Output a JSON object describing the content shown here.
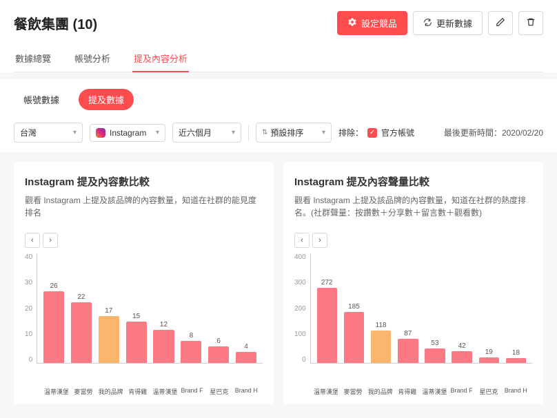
{
  "header": {
    "title": "餐飲集團 (10)",
    "set_competitor_label": "設定競品",
    "refresh_label": "更新數據"
  },
  "tabs": {
    "items": [
      "數據總覽",
      "帳號分析",
      "提及內容分析"
    ],
    "active_index": 2
  },
  "subtabs": {
    "items": [
      "帳號數據",
      "提及數據"
    ],
    "active_index": 1
  },
  "filters": {
    "region": "台灣",
    "platform": "Instagram",
    "period": "近六個月",
    "sort": "預設排序",
    "exclude_label": "排除：",
    "exclude_official": "官方帳號"
  },
  "updated": {
    "label": "最後更新時間：",
    "value": "2020/02/20"
  },
  "colors": {
    "normal": "#fd7a85",
    "highlight": "#f9b66c",
    "axis": "#999999"
  },
  "chart1": {
    "title": "Instagram 提及內容數比較",
    "sub": "觀看 Instagram 上提及該品牌的內容數量，知道在社群的能見度排名",
    "ymax": 40,
    "ytick_step": 10,
    "categories": [
      "溫蒂漢堡",
      "麥當勞",
      "我的品牌",
      "肯得雞",
      "溫蒂漢堡",
      "Brand F",
      "星巴克",
      "Brand H"
    ],
    "values": [
      26,
      22,
      17,
      15,
      12,
      8,
      6,
      4
    ],
    "highlight_index": 2
  },
  "chart2": {
    "title": "Instagram 提及內容聲量比較",
    "sub": "觀看 Instagram 上提及該品牌的內容數量，知道在社群的熱度排名。(社群聲量：按讚數＋分享數＋留言數＋觀看數)",
    "ymax": 400,
    "ytick_step": 100,
    "categories": [
      "溫蒂漢堡",
      "麥當勞",
      "我的品牌",
      "肯得雞",
      "溫蒂漢堡",
      "Brand F",
      "星巴克",
      "Brand H"
    ],
    "values": [
      272,
      185,
      118,
      87,
      53,
      42,
      19,
      18
    ],
    "highlight_index": 2
  }
}
